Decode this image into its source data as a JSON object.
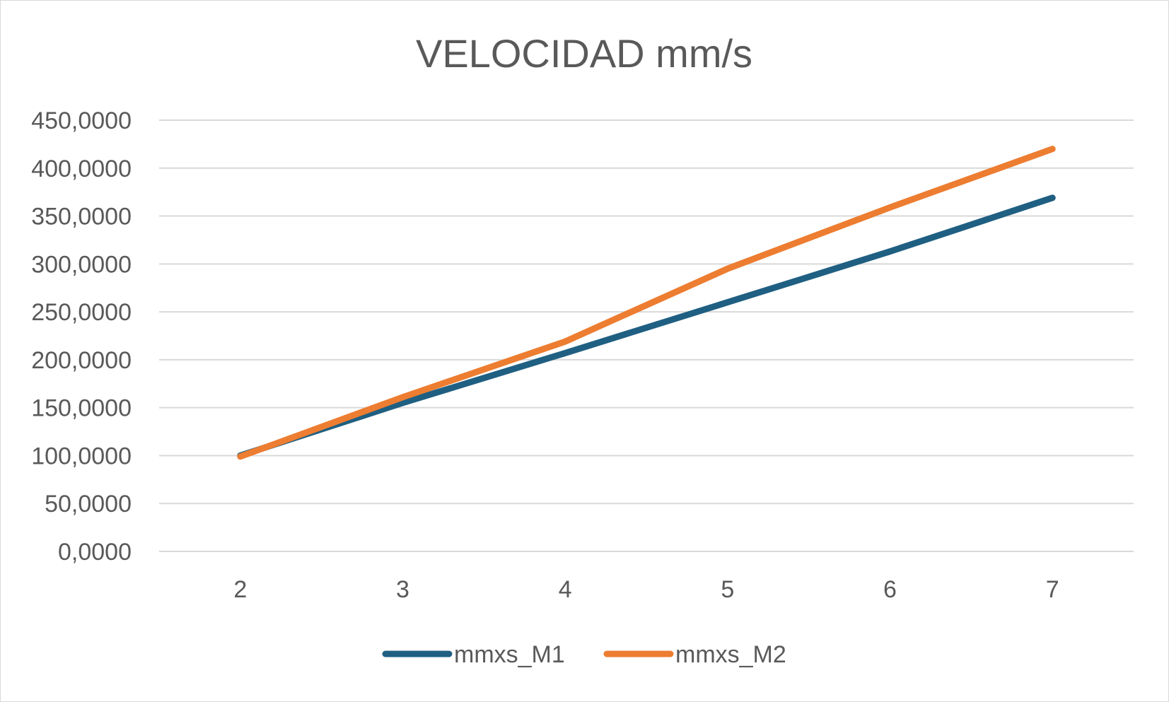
{
  "chart_data": {
    "type": "line",
    "title": "VELOCIDAD mm/s",
    "xlabel": "",
    "ylabel": "",
    "categories": [
      "2",
      "3",
      "4",
      "5",
      "6",
      "7"
    ],
    "ylim": [
      0,
      450
    ],
    "yticks": [
      0,
      50,
      100,
      150,
      200,
      250,
      300,
      350,
      400,
      450
    ],
    "ytick_labels": [
      "0,0000",
      "50,0000",
      "100,0000",
      "150,0000",
      "200,0000",
      "250,0000",
      "300,0000",
      "350,0000",
      "400,0000",
      "450,0000"
    ],
    "grid": true,
    "legend_position": "bottom",
    "series": [
      {
        "name": "mmxs_M1",
        "color": "#1f5f82",
        "values": [
          100,
          155,
          207,
          260,
          313,
          369
        ]
      },
      {
        "name": "mmxs_M2",
        "color": "#ed7d31",
        "values": [
          99,
          161,
          219,
          295,
          359,
          420
        ]
      }
    ]
  }
}
